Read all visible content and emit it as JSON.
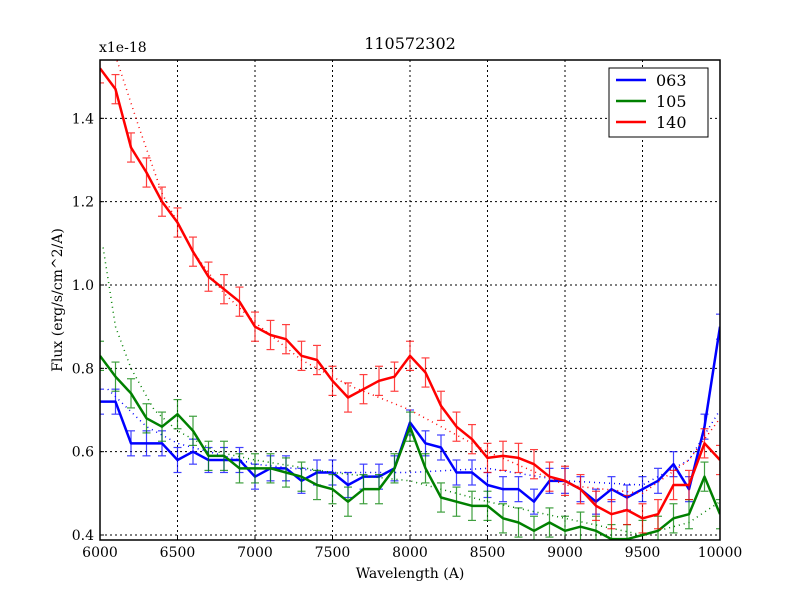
{
  "chart_data": {
    "type": "line",
    "title": "110572302",
    "xlabel": "Wavelength (A)",
    "ylabel": "Flux (erg/s/cm^2/A)",
    "offset_label": "x1e-18",
    "xlim": [
      6000,
      10000
    ],
    "ylim": [
      0.388,
      1.54
    ],
    "xticks": [
      6000,
      6500,
      7000,
      7500,
      8000,
      8500,
      9000,
      9500,
      10000
    ],
    "yticks": [
      0.4,
      0.6,
      0.8,
      1.0,
      1.2,
      1.4
    ],
    "ytick_labels": [
      "0.4",
      "0.6",
      "0.8",
      "1.0",
      "1.2",
      "1.4"
    ],
    "grid": true,
    "legend_position": "top-right",
    "x": [
      6000,
      6100,
      6200,
      6300,
      6400,
      6500,
      6600,
      6700,
      6800,
      6900,
      7000,
      7100,
      7200,
      7300,
      7400,
      7500,
      7600,
      7700,
      7800,
      7900,
      8000,
      8100,
      8200,
      8300,
      8400,
      8500,
      8600,
      8700,
      8800,
      8900,
      9000,
      9100,
      9200,
      9300,
      9400,
      9500,
      9600,
      9700,
      9800,
      9900,
      10000
    ],
    "series": [
      {
        "name": "063",
        "color": "#0000ff",
        "error": 0.03,
        "values": [
          0.72,
          0.72,
          0.62,
          0.62,
          0.62,
          0.58,
          0.6,
          0.58,
          0.58,
          0.58,
          0.54,
          0.56,
          0.56,
          0.53,
          0.55,
          0.55,
          0.52,
          0.54,
          0.54,
          0.56,
          0.67,
          0.62,
          0.61,
          0.55,
          0.55,
          0.52,
          0.51,
          0.51,
          0.48,
          0.53,
          0.53,
          0.51,
          0.48,
          0.51,
          0.49,
          0.51,
          0.53,
          0.57,
          0.51,
          0.66,
          0.9
        ],
        "fit_x": [
          6050,
          6300,
          6500,
          7000,
          7500,
          8000,
          8500,
          9000,
          9500,
          9800,
          10000
        ],
        "fit_y": [
          0.75,
          0.66,
          0.62,
          0.57,
          0.55,
          0.55,
          0.56,
          0.53,
          0.52,
          0.58,
          0.7
        ]
      },
      {
        "name": "105",
        "color": "#008000",
        "error": 0.035,
        "values": [
          0.83,
          0.78,
          0.74,
          0.68,
          0.66,
          0.69,
          0.65,
          0.59,
          0.59,
          0.56,
          0.56,
          0.56,
          0.55,
          0.54,
          0.52,
          0.51,
          0.48,
          0.51,
          0.51,
          0.56,
          0.66,
          0.56,
          0.49,
          0.48,
          0.47,
          0.47,
          0.44,
          0.43,
          0.41,
          0.43,
          0.41,
          0.42,
          0.41,
          0.39,
          0.39,
          0.4,
          0.41,
          0.44,
          0.45,
          0.54,
          0.45
        ],
        "fit_x": [
          6020,
          6100,
          6200,
          6350,
          6500,
          6750,
          7000,
          7500,
          8000,
          8500,
          9000,
          9500,
          9800,
          10000
        ],
        "fit_y": [
          1.09,
          0.9,
          0.8,
          0.7,
          0.65,
          0.6,
          0.58,
          0.55,
          0.53,
          0.48,
          0.44,
          0.4,
          0.43,
          0.48
        ]
      },
      {
        "name": "140",
        "color": "#ff0000",
        "error": 0.035,
        "values": [
          1.52,
          1.47,
          1.33,
          1.27,
          1.2,
          1.15,
          1.08,
          1.02,
          0.99,
          0.96,
          0.9,
          0.88,
          0.87,
          0.83,
          0.82,
          0.77,
          0.73,
          0.75,
          0.77,
          0.78,
          0.83,
          0.79,
          0.71,
          0.66,
          0.63,
          0.585,
          0.59,
          0.585,
          0.57,
          0.54,
          0.53,
          0.51,
          0.47,
          0.45,
          0.46,
          0.44,
          0.45,
          0.52,
          0.52,
          0.62,
          0.58
        ],
        "fit_x": [
          6100,
          6250,
          6400,
          6600,
          6800,
          7000,
          7300,
          7600,
          8000,
          8500,
          9000,
          9500,
          9800,
          10000
        ],
        "fit_y": [
          1.55,
          1.38,
          1.22,
          1.08,
          0.98,
          0.91,
          0.82,
          0.76,
          0.7,
          0.6,
          0.52,
          0.5,
          0.58,
          0.68
        ]
      }
    ]
  }
}
